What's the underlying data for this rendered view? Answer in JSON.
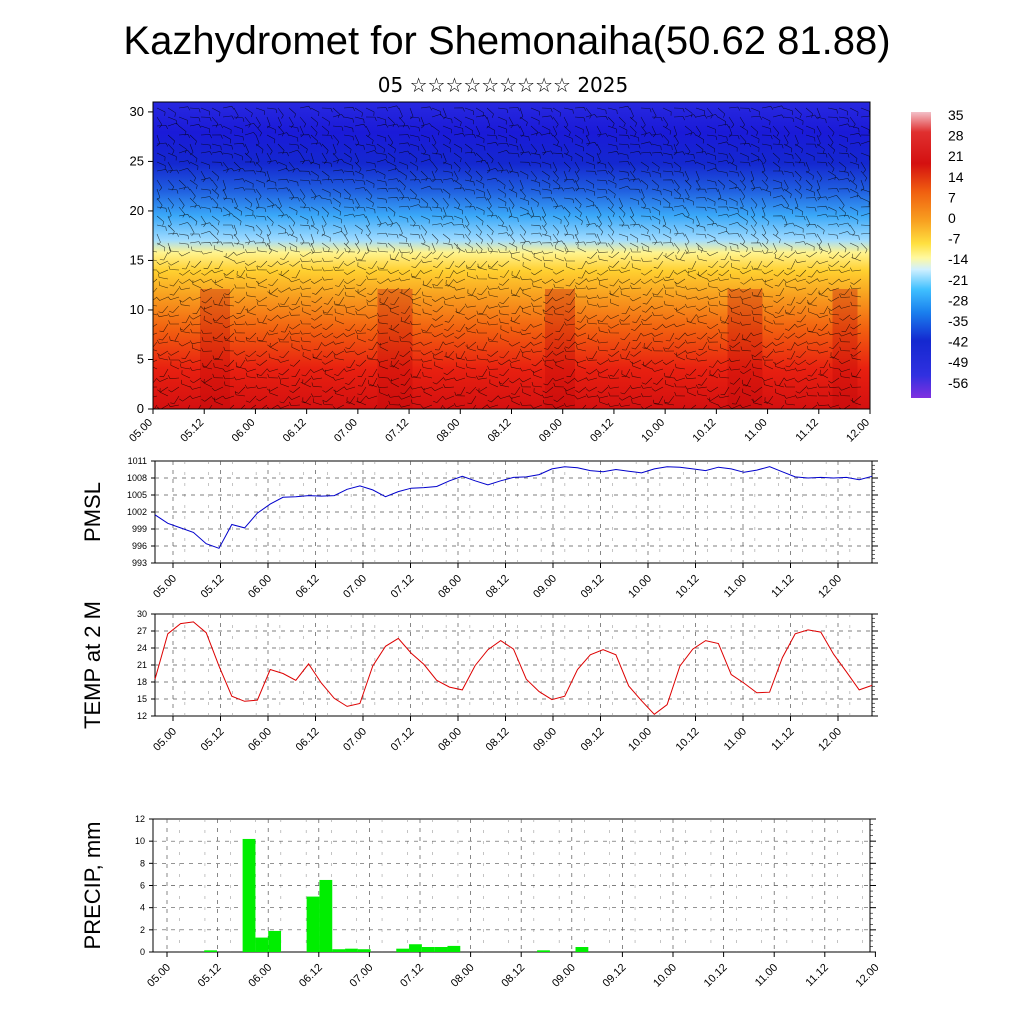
{
  "header": {
    "title": "Kazhydromet for Shemonaiha(50.62 81.88)",
    "subtitle": "05 ☆☆☆☆☆☆☆☆☆ 2025"
  },
  "colors": {
    "pmsl_line": "#0000cc",
    "temp_line": "#dd0000",
    "precip_bar": "#00ee00",
    "wind_barb": "#000000"
  },
  "chart_data": [
    {
      "type": "heatmap",
      "name": "cross-section",
      "y_ticks": [
        "0",
        "5",
        "10",
        "15",
        "20",
        "25",
        "30"
      ],
      "ylim": [
        0,
        31
      ],
      "x_ticks": [
        "05.00",
        "05.12",
        "06.00",
        "06.12",
        "07.00",
        "07.12",
        "08.00",
        "08.12",
        "09.00",
        "09.12",
        "10.00",
        "10.12",
        "11.00",
        "11.12",
        "12.00"
      ],
      "colorbar": {
        "labels": [
          "35",
          "28",
          "21",
          "14",
          "7",
          "0",
          "-7",
          "-14",
          "-21",
          "-28",
          "-35",
          "-42",
          "-49",
          "-56"
        ],
        "range": [
          -60,
          38
        ]
      },
      "overlay": "wind barbs",
      "freezing_level_approx": [
        15.5,
        16.0,
        17.0,
        16.5,
        15.5,
        15.0,
        15.0,
        15.0,
        15.5,
        15.5,
        16.0,
        16.0,
        15.5,
        15.0,
        16.0
      ]
    },
    {
      "type": "line",
      "name": "PMSL",
      "ylabel": "PMSL",
      "y_ticks": [
        "993",
        "996",
        "999",
        "1002",
        "1005",
        "1008",
        "1011"
      ],
      "ylim": [
        993,
        1011
      ],
      "x_ticks": [
        "05.00",
        "05.12",
        "06.00",
        "06.12",
        "07.00",
        "07.12",
        "08.00",
        "08.12",
        "09.00",
        "09.12",
        "10.00",
        "10.12",
        "11.00",
        "11.12",
        "12.00"
      ],
      "x": [
        0,
        3,
        6,
        9,
        12,
        15,
        18,
        21,
        24,
        27,
        30,
        33,
        36,
        39,
        42,
        45,
        48,
        51,
        54,
        57,
        60,
        63,
        66,
        69,
        72,
        75,
        78,
        81,
        84,
        87,
        90,
        93,
        96,
        99,
        102,
        105,
        108,
        111,
        114,
        117,
        120,
        123,
        126,
        129,
        132,
        135,
        138,
        141,
        144,
        147,
        150,
        153,
        156,
        159,
        162,
        165,
        168
      ],
      "values": [
        1001.5,
        1000.0,
        999.2,
        998.4,
        996.4,
        995.6,
        999.8,
        999.2,
        1001.8,
        1003.4,
        1004.6,
        1004.7,
        1004.9,
        1004.8,
        1004.9,
        1006.0,
        1006.6,
        1005.9,
        1004.7,
        1005.6,
        1006.2,
        1006.3,
        1006.5,
        1007.5,
        1008.3,
        1007.5,
        1006.8,
        1007.5,
        1008.1,
        1008.2,
        1008.6,
        1009.6,
        1010.0,
        1009.8,
        1009.3,
        1009.1,
        1009.5,
        1009.2,
        1008.9,
        1009.6,
        1010.0,
        1009.9,
        1009.6,
        1009.3,
        1009.9,
        1009.6,
        1009.0,
        1009.4,
        1010.0,
        1009.1,
        1008.2,
        1008.0,
        1008.1,
        1008.0,
        1008.1,
        1007.7,
        1008.3
      ]
    },
    {
      "type": "line",
      "name": "TEMP at 2 M",
      "ylabel": "TEMP at 2 M",
      "y_ticks": [
        "12",
        "15",
        "18",
        "21",
        "24",
        "27",
        "30"
      ],
      "ylim": [
        12,
        30
      ],
      "x_ticks": [
        "05.00",
        "05.12",
        "06.00",
        "06.12",
        "07.00",
        "07.12",
        "08.00",
        "08.12",
        "09.00",
        "09.12",
        "10.00",
        "10.12",
        "11.00",
        "11.12",
        "12.00"
      ],
      "x": [
        0,
        3,
        6,
        9,
        12,
        15,
        18,
        21,
        24,
        27,
        30,
        33,
        36,
        39,
        42,
        45,
        48,
        51,
        54,
        57,
        60,
        63,
        66,
        69,
        72,
        75,
        78,
        81,
        84,
        87,
        90,
        93,
        96,
        99,
        102,
        105,
        108,
        111,
        114,
        117,
        120,
        123,
        126,
        129,
        132,
        135,
        138,
        141,
        144,
        147,
        150,
        153,
        156,
        159,
        162,
        165,
        168
      ],
      "values": [
        18.5,
        26.5,
        28.3,
        28.6,
        26.7,
        20.8,
        15.5,
        14.6,
        14.8,
        20.2,
        19.5,
        18.3,
        21.2,
        17.8,
        15.1,
        13.7,
        14.2,
        20.8,
        24.3,
        25.7,
        23.1,
        21.1,
        18.3,
        17.1,
        16.6,
        20.9,
        23.7,
        25.3,
        23.8,
        18.5,
        16.3,
        14.9,
        15.5,
        20.2,
        22.8,
        23.7,
        22.8,
        17.3,
        14.7,
        12.3,
        14.0,
        20.8,
        23.8,
        25.3,
        24.8,
        19.3,
        17.8,
        16.1,
        16.2,
        22.3,
        26.5,
        27.2,
        26.8,
        22.9,
        19.8,
        16.6,
        17.4
      ]
    },
    {
      "type": "bar",
      "name": "PRECIP, mm",
      "ylabel": "PRECIP, mm",
      "y_ticks": [
        "0",
        "2",
        "4",
        "6",
        "8",
        "10",
        "12"
      ],
      "ylim": [
        0,
        12
      ],
      "x_ticks": [
        "05.00",
        "05.12",
        "06.00",
        "06.12",
        "07.00",
        "07.12",
        "08.00",
        "08.12",
        "09.00",
        "09.12",
        "10.00",
        "10.12",
        "11.00",
        "11.12",
        "12.00"
      ],
      "x": [
        0,
        3,
        6,
        9,
        12,
        15,
        18,
        21,
        24,
        27,
        30,
        33,
        36,
        39,
        42,
        45,
        48,
        51,
        54,
        57,
        60,
        63,
        66,
        69,
        72,
        75,
        78,
        81,
        84,
        87,
        90,
        93,
        96,
        99,
        102,
        105,
        108,
        111,
        114,
        117,
        120,
        123,
        126,
        129,
        132,
        135,
        138,
        141,
        144,
        147,
        150,
        153,
        156,
        159,
        162,
        165
      ],
      "values": [
        0,
        0,
        0,
        0,
        0.15,
        0,
        0,
        10.2,
        1.3,
        1.9,
        0,
        0,
        5.0,
        6.5,
        0.25,
        0.3,
        0.25,
        0,
        0,
        0.3,
        0.7,
        0.45,
        0.45,
        0.55,
        0,
        0,
        0,
        0,
        0,
        0,
        0.15,
        0,
        0,
        0.45,
        0,
        0,
        0,
        0,
        0,
        0,
        0,
        0,
        0,
        0,
        0,
        0,
        0,
        0,
        0,
        0,
        0,
        0,
        0,
        0,
        0,
        0
      ]
    }
  ]
}
